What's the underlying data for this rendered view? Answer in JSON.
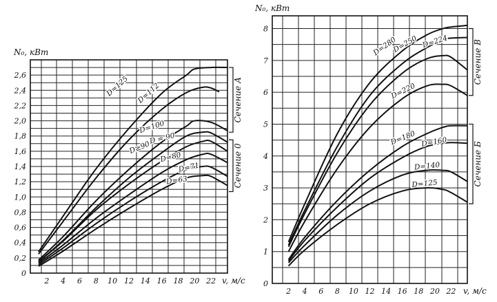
{
  "chart_data": [
    {
      "type": "line",
      "ylabel": "N₀, кВт",
      "xlabel": "v, м/с",
      "xlim": [
        0,
        24
      ],
      "ylim": [
        0,
        2.8
      ],
      "x_ticks": [
        2,
        4,
        6,
        8,
        10,
        12,
        14,
        16,
        18,
        20,
        22
      ],
      "y_ticks": [
        0,
        0.2,
        0.4,
        0.6,
        0.8,
        1.0,
        1.2,
        1.4,
        1.6,
        1.8,
        2.0,
        2.2,
        2.4,
        2.6
      ],
      "y_tick_labels": [
        "0",
        "0,2",
        "0,4",
        "0,6",
        "0,8",
        "1,0",
        "1,2",
        "1,4",
        "1,6",
        "1,8",
        "2,0",
        "2,2",
        "2,4",
        "2,6"
      ],
      "grid": true,
      "series": [
        {
          "name": "D=125",
          "x": [
            1,
            4,
            8,
            12,
            16,
            19,
            20,
            22,
            24
          ],
          "y": [
            0.28,
            0.75,
            1.37,
            1.9,
            2.36,
            2.6,
            2.68,
            2.7,
            2.7
          ]
        },
        {
          "name": "D=112",
          "x": [
            1,
            4,
            8,
            12,
            16,
            19,
            21,
            22,
            23
          ],
          "y": [
            0.25,
            0.68,
            1.25,
            1.75,
            2.15,
            2.37,
            2.44,
            2.43,
            2.38
          ]
        },
        {
          "name": "D=100",
          "x": [
            1,
            4,
            8,
            12,
            16,
            19,
            20,
            22,
            24
          ],
          "y": [
            0.17,
            0.48,
            0.95,
            1.36,
            1.72,
            1.93,
            2.0,
            1.98,
            1.87
          ]
        },
        {
          "name": "D = 90",
          "x": [
            1,
            4,
            8,
            12,
            16,
            19,
            21,
            22,
            24
          ],
          "y": [
            0.15,
            0.43,
            0.86,
            1.25,
            1.58,
            1.8,
            1.85,
            1.84,
            1.72
          ]
        },
        {
          "name": "D≥90",
          "x": [
            1,
            4,
            8,
            12,
            16,
            19,
            21,
            22,
            24
          ],
          "y": [
            0.15,
            0.42,
            0.83,
            1.17,
            1.47,
            1.66,
            1.73,
            1.73,
            1.6
          ]
        },
        {
          "name": "D=80",
          "x": [
            1,
            4,
            8,
            12,
            16,
            19,
            21,
            22,
            24
          ],
          "y": [
            0.13,
            0.37,
            0.72,
            1.03,
            1.32,
            1.49,
            1.56,
            1.56,
            1.45
          ]
        },
        {
          "name": "D=71",
          "x": [
            1,
            4,
            8,
            12,
            16,
            19,
            21,
            22,
            24
          ],
          "y": [
            0.11,
            0.33,
            0.65,
            0.94,
            1.2,
            1.36,
            1.4,
            1.39,
            1.27
          ]
        },
        {
          "name": "D=63",
          "x": [
            1,
            4,
            8,
            12,
            16,
            19,
            21,
            22,
            24
          ],
          "y": [
            0.09,
            0.29,
            0.58,
            0.85,
            1.1,
            1.25,
            1.28,
            1.27,
            1.15
          ]
        }
      ],
      "section_labels": [
        "Сечение А",
        "Сечение 0"
      ]
    },
    {
      "type": "line",
      "ylabel": "N₀, кВт",
      "xlabel": "v, м/с",
      "xlim": [
        0,
        24
      ],
      "ylim": [
        0,
        8.4
      ],
      "x_ticks": [
        2,
        4,
        6,
        8,
        10,
        12,
        14,
        16,
        18,
        20,
        22
      ],
      "y_ticks": [
        0,
        1,
        2,
        3,
        4,
        5,
        6,
        7,
        8
      ],
      "y_tick_labels": [
        "0",
        "1",
        "2",
        "3",
        "4",
        "5",
        "6",
        "7",
        "8"
      ],
      "grid": true,
      "series": [
        {
          "name": "D=280",
          "x": [
            2,
            4,
            8,
            12,
            16,
            19,
            21,
            22,
            24
          ],
          "y": [
            1.3,
            2.5,
            4.7,
            6.3,
            7.3,
            7.8,
            8.0,
            8.05,
            8.1
          ]
        },
        {
          "name": "D=250",
          "x": [
            2,
            4,
            8,
            12,
            16,
            19,
            21,
            22,
            24
          ],
          "y": [
            1.2,
            2.3,
            4.3,
            5.9,
            6.9,
            7.4,
            7.65,
            7.7,
            7.72
          ]
        },
        {
          "name": "D=224",
          "x": [
            2,
            4,
            8,
            12,
            16,
            19,
            21,
            22,
            24
          ],
          "y": [
            1.15,
            2.2,
            4.1,
            5.6,
            6.6,
            7.05,
            7.15,
            7.1,
            6.7
          ]
        },
        {
          "name": "D=220",
          "x": [
            2,
            4,
            8,
            12,
            16,
            19,
            21,
            22,
            24
          ],
          "y": [
            1.0,
            1.95,
            3.6,
            4.9,
            5.8,
            6.2,
            6.25,
            6.2,
            5.9
          ]
        },
        {
          "name": "D=180",
          "x": [
            2,
            4,
            8,
            12,
            16,
            19,
            21,
            22,
            24
          ],
          "y": [
            0.75,
            1.45,
            2.6,
            3.55,
            4.3,
            4.7,
            4.9,
            4.95,
            4.95
          ]
        },
        {
          "name": "D=160",
          "x": [
            2,
            4,
            8,
            12,
            16,
            19,
            21,
            22,
            24
          ],
          "y": [
            0.7,
            1.35,
            2.4,
            3.3,
            3.95,
            4.3,
            4.4,
            4.42,
            4.4
          ]
        },
        {
          "name": "D=140",
          "x": [
            2,
            4,
            8,
            12,
            16,
            19,
            21,
            22,
            24
          ],
          "y": [
            0.65,
            1.2,
            2.15,
            2.9,
            3.4,
            3.55,
            3.55,
            3.5,
            3.2
          ]
        },
        {
          "name": "D=125",
          "x": [
            2,
            4,
            8,
            12,
            16,
            19,
            21,
            22,
            24
          ],
          "y": [
            0.55,
            1.05,
            1.85,
            2.5,
            2.9,
            3.0,
            2.95,
            2.85,
            2.55
          ]
        }
      ],
      "section_labels": [
        "Сечение В",
        "Сечение Б"
      ]
    }
  ]
}
